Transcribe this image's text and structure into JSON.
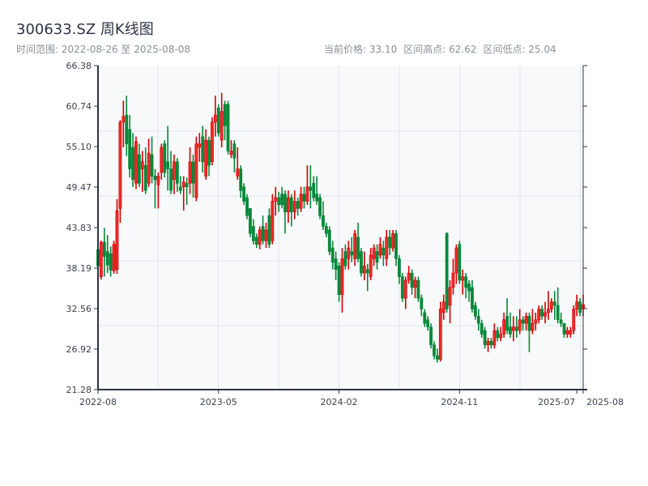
{
  "header": {
    "title": "300633.SZ 周K线图",
    "range_label": "时间范围: 2022-08-26 至 2025-08-08",
    "current_price": "当前价格: 33.10",
    "period_high": "区间高点: 62.62",
    "period_low": "区间低点: 25.04"
  },
  "chart_data": {
    "type": "candlestick",
    "title": "300633.SZ 周K线图",
    "up_color": "#d40000",
    "down_color": "#08883a",
    "ylim": [
      21.28,
      66.38
    ],
    "y_ticks": [
      "21.28",
      "26.92",
      "32.56",
      "38.19",
      "43.83",
      "49.47",
      "55.10",
      "60.74",
      "66.38"
    ],
    "x_ticks": [
      {
        "label": "2022-08",
        "index": 0
      },
      {
        "label": "2023-05",
        "index": 38
      },
      {
        "label": "2024-02",
        "index": 76
      },
      {
        "label": "2024-11",
        "index": 114
      },
      {
        "label": "2025-07",
        "index": 151
      },
      {
        "label": "2025-08",
        "index": 153
      }
    ],
    "grid": true,
    "ohlc_fields": [
      "open",
      "close",
      "low",
      "high"
    ],
    "candles": [
      [
        40.8,
        38.5,
        37.5,
        41.5
      ],
      [
        37.0,
        41.8,
        36.6,
        42.0
      ],
      [
        41.8,
        39.8,
        37.0,
        43.8
      ],
      [
        40.5,
        38.6,
        37.5,
        42.8
      ],
      [
        40.2,
        37.9,
        37.0,
        41.2
      ],
      [
        37.8,
        41.5,
        37.4,
        42.0
      ],
      [
        38.0,
        46.2,
        37.4,
        47.8
      ],
      [
        46.5,
        58.5,
        44.5,
        58.8
      ],
      [
        58.5,
        59.3,
        55.0,
        61.5
      ],
      [
        59.5,
        55.5,
        53.8,
        62.2
      ],
      [
        57.5,
        52.0,
        50.8,
        59.5
      ],
      [
        55.0,
        50.5,
        49.5,
        57.0
      ],
      [
        50.0,
        55.8,
        49.2,
        56.5
      ],
      [
        54.0,
        50.0,
        49.5,
        55.5
      ],
      [
        52.0,
        53.0,
        48.8,
        54.5
      ],
      [
        52.5,
        49.0,
        48.5,
        55.0
      ],
      [
        50.0,
        54.2,
        49.5,
        56.2
      ],
      [
        54.0,
        51.0,
        50.0,
        56.5
      ],
      [
        51.0,
        50.5,
        46.5,
        52.0
      ],
      [
        49.8,
        51.0,
        46.5,
        51.5
      ],
      [
        51.5,
        55.0,
        50.5,
        55.5
      ],
      [
        55.5,
        51.5,
        50.8,
        56.0
      ],
      [
        53.0,
        52.0,
        49.0,
        58.0
      ],
      [
        52.0,
        49.0,
        48.5,
        54.5
      ],
      [
        50.5,
        53.0,
        48.5,
        54.0
      ],
      [
        53.0,
        50.0,
        48.8,
        53.5
      ],
      [
        49.5,
        49.0,
        48.5,
        51.0
      ],
      [
        49.5,
        50.2,
        46.2,
        51.0
      ],
      [
        50.0,
        49.5,
        47.0,
        50.8
      ],
      [
        50.0,
        53.0,
        48.5,
        55.0
      ],
      [
        53.0,
        50.0,
        48.0,
        54.0
      ],
      [
        48.0,
        55.5,
        47.5,
        56.5
      ],
      [
        55.0,
        55.5,
        53.0,
        57.0
      ],
      [
        56.5,
        53.0,
        51.5,
        58.0
      ],
      [
        51.0,
        56.0,
        50.5,
        57.5
      ],
      [
        56.0,
        52.5,
        51.0,
        56.5
      ],
      [
        53.0,
        58.5,
        52.5,
        59.2
      ],
      [
        58.5,
        59.5,
        56.5,
        62.2
      ],
      [
        60.5,
        57.0,
        56.5,
        61.0
      ],
      [
        56.0,
        60.0,
        55.0,
        62.6
      ],
      [
        61.0,
        58.0,
        56.0,
        61.5
      ],
      [
        61.0,
        54.5,
        54.0,
        61.5
      ],
      [
        54.0,
        54.5,
        53.5,
        56.0
      ],
      [
        55.5,
        53.5,
        51.5,
        56.0
      ],
      [
        51.0,
        52.0,
        50.5,
        55.0
      ],
      [
        52.0,
        49.0,
        48.0,
        52.5
      ],
      [
        49.5,
        47.5,
        47.0,
        50.0
      ],
      [
        48.0,
        45.5,
        45.0,
        48.5
      ],
      [
        46.5,
        43.0,
        42.5,
        46.5
      ],
      [
        44.0,
        42.0,
        41.5,
        45.0
      ],
      [
        42.5,
        41.5,
        41.0,
        43.0
      ],
      [
        41.5,
        43.5,
        40.8,
        44.0
      ],
      [
        44.0,
        42.0,
        41.5,
        45.5
      ],
      [
        42.0,
        43.5,
        41.0,
        44.5
      ],
      [
        45.5,
        41.5,
        41.0,
        46.5
      ],
      [
        42.0,
        47.5,
        41.5,
        48.5
      ],
      [
        47.5,
        48.0,
        45.5,
        49.5
      ],
      [
        48.0,
        47.0,
        46.0,
        48.8
      ],
      [
        48.5,
        47.0,
        46.5,
        49.5
      ],
      [
        48.5,
        46.0,
        43.0,
        49.0
      ],
      [
        46.0,
        48.0,
        44.5,
        49.0
      ],
      [
        48.0,
        46.0,
        44.0,
        48.5
      ],
      [
        46.0,
        47.5,
        45.0,
        49.0
      ],
      [
        47.5,
        46.5,
        45.5,
        48.0
      ],
      [
        46.5,
        48.5,
        46.0,
        49.5
      ],
      [
        48.5,
        47.5,
        46.5,
        49.5
      ],
      [
        47.5,
        49.5,
        47.0,
        52.5
      ],
      [
        49.5,
        49.0,
        46.5,
        52.5
      ],
      [
        50.0,
        48.0,
        47.5,
        51.0
      ],
      [
        48.5,
        47.5,
        47.0,
        51.0
      ],
      [
        48.0,
        45.5,
        45.0,
        48.5
      ],
      [
        45.5,
        44.0,
        43.5,
        47.5
      ],
      [
        44.0,
        43.0,
        42.5,
        44.5
      ],
      [
        43.5,
        40.5,
        40.0,
        44.0
      ],
      [
        41.0,
        39.0,
        38.0,
        42.0
      ],
      [
        39.5,
        38.0,
        36.5,
        40.5
      ],
      [
        38.5,
        34.5,
        33.5,
        39.0
      ],
      [
        34.5,
        39.5,
        32.0,
        41.0
      ],
      [
        40.5,
        38.5,
        38.0,
        41.5
      ],
      [
        39.5,
        41.0,
        38.0,
        42.0
      ],
      [
        40.5,
        40.0,
        39.0,
        42.5
      ],
      [
        39.5,
        43.0,
        38.5,
        43.5
      ],
      [
        42.5,
        39.5,
        39.0,
        44.5
      ],
      [
        40.5,
        37.5,
        37.0,
        41.0
      ],
      [
        37.5,
        38.5,
        36.5,
        40.5
      ],
      [
        38.0,
        37.5,
        35.0,
        38.8
      ],
      [
        37.0,
        40.0,
        36.5,
        41.0
      ],
      [
        39.5,
        41.0,
        38.5,
        41.5
      ],
      [
        40.5,
        39.0,
        38.0,
        41.5
      ],
      [
        40.0,
        41.5,
        39.5,
        42.5
      ],
      [
        41.0,
        40.0,
        38.5,
        42.0
      ],
      [
        39.5,
        42.5,
        38.5,
        43.5
      ],
      [
        42.5,
        41.0,
        40.0,
        43.5
      ],
      [
        41.0,
        43.0,
        40.5,
        43.5
      ],
      [
        43.0,
        39.5,
        38.5,
        43.5
      ],
      [
        39.5,
        37.0,
        36.0,
        40.0
      ],
      [
        37.0,
        34.0,
        33.5,
        37.5
      ],
      [
        34.0,
        36.5,
        32.5,
        37.0
      ],
      [
        36.5,
        37.5,
        36.0,
        38.5
      ],
      [
        37.5,
        35.5,
        34.5,
        38.0
      ],
      [
        35.5,
        36.5,
        34.0,
        37.0
      ],
      [
        36.5,
        34.0,
        33.5,
        37.0
      ],
      [
        34.0,
        32.5,
        31.5,
        34.5
      ],
      [
        32.0,
        30.5,
        30.0,
        32.5
      ],
      [
        31.0,
        30.0,
        29.5,
        31.5
      ],
      [
        30.0,
        27.5,
        27.0,
        30.5
      ],
      [
        27.5,
        26.0,
        25.5,
        28.0
      ],
      [
        26.0,
        25.5,
        25.04,
        27.0
      ],
      [
        25.5,
        32.5,
        25.2,
        33.5
      ],
      [
        32.0,
        33.5,
        31.0,
        34.5
      ],
      [
        43.0,
        32.5,
        32.0,
        43.2
      ],
      [
        33.0,
        35.5,
        30.5,
        36.5
      ],
      [
        35.5,
        37.5,
        34.5,
        39.5
      ],
      [
        37.5,
        41.0,
        36.0,
        41.5
      ],
      [
        41.5,
        36.5,
        36.0,
        42.0
      ],
      [
        36.5,
        37.0,
        34.5,
        38.0
      ],
      [
        37.0,
        35.5,
        34.0,
        37.5
      ],
      [
        36.0,
        35.0,
        33.5,
        36.5
      ],
      [
        35.5,
        32.5,
        32.0,
        36.5
      ],
      [
        33.0,
        31.5,
        31.0,
        33.5
      ],
      [
        31.5,
        30.5,
        29.5,
        32.5
      ],
      [
        30.5,
        29.0,
        28.5,
        31.0
      ],
      [
        29.5,
        27.5,
        27.0,
        30.0
      ],
      [
        27.5,
        28.0,
        26.5,
        28.5
      ],
      [
        28.0,
        27.5,
        27.0,
        28.5
      ],
      [
        27.5,
        29.5,
        27.0,
        30.5
      ],
      [
        29.5,
        28.5,
        28.0,
        30.0
      ],
      [
        28.5,
        29.0,
        28.0,
        30.0
      ],
      [
        29.0,
        31.0,
        28.5,
        32.0
      ],
      [
        31.5,
        29.5,
        29.0,
        34.0
      ],
      [
        30.0,
        29.0,
        28.5,
        32.0
      ],
      [
        29.5,
        30.0,
        28.0,
        31.5
      ],
      [
        30.0,
        29.5,
        28.5,
        31.5
      ],
      [
        29.5,
        31.0,
        29.0,
        32.5
      ],
      [
        31.0,
        30.5,
        29.5,
        31.5
      ],
      [
        30.5,
        31.5,
        29.5,
        32.0
      ],
      [
        31.5,
        29.5,
        26.5,
        32.0
      ],
      [
        29.5,
        30.5,
        29.0,
        32.5
      ],
      [
        30.5,
        31.0,
        29.5,
        32.0
      ],
      [
        31.0,
        32.5,
        30.5,
        33.0
      ],
      [
        32.5,
        31.5,
        31.0,
        33.0
      ],
      [
        31.5,
        32.0,
        30.5,
        33.5
      ],
      [
        32.0,
        32.5,
        31.0,
        35.0
      ],
      [
        32.5,
        33.5,
        32.0,
        34.0
      ],
      [
        33.5,
        33.0,
        31.0,
        35.0
      ],
      [
        33.0,
        31.0,
        30.5,
        35.5
      ],
      [
        31.0,
        30.5,
        30.0,
        32.0
      ],
      [
        30.5,
        29.0,
        28.5,
        30.5
      ],
      [
        29.0,
        29.5,
        28.5,
        30.0
      ],
      [
        29.0,
        29.5,
        28.5,
        30.0
      ],
      [
        29.5,
        32.5,
        29.0,
        33.0
      ],
      [
        32.5,
        33.5,
        31.5,
        34.5
      ],
      [
        33.5,
        32.0,
        31.5,
        34.0
      ],
      [
        32.5,
        33.1,
        31.5,
        34.5
      ]
    ]
  }
}
